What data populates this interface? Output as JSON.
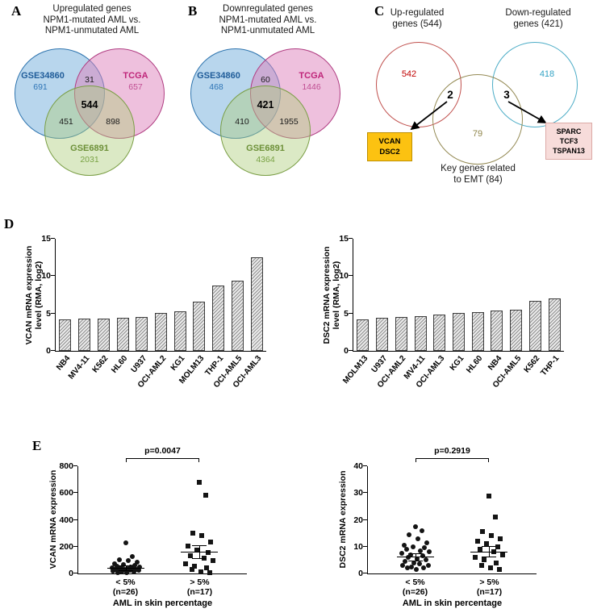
{
  "figure": {
    "panel_labels": {
      "a": "A",
      "b": "B",
      "c": "C",
      "d": "D",
      "e": "E"
    }
  },
  "venn_a": {
    "title_lines": [
      "Upregulated genes",
      "NPM1-mutated AML vs.",
      "NPM1-unmutated AML"
    ],
    "sets": [
      {
        "name": "GSE34860",
        "unique": "691"
      },
      {
        "name": "TCGA",
        "unique": "657"
      },
      {
        "name": "GSE6891",
        "unique": "2031"
      }
    ],
    "overlap_top": "31",
    "overlap_center": "544",
    "overlap_left": "451",
    "overlap_right": "898"
  },
  "venn_b": {
    "title_lines": [
      "Downregulated genes",
      "NPM1-mutated AML vs.",
      "NPM1-unmutated AML"
    ],
    "sets": [
      {
        "name": "GSE34860",
        "unique": "468"
      },
      {
        "name": "TCGA",
        "unique": "1446"
      },
      {
        "name": "GSE6891",
        "unique": "4364"
      }
    ],
    "overlap_top": "60",
    "overlap_center": "421",
    "overlap_left": "410",
    "overlap_right": "1955"
  },
  "venn_c": {
    "up_title_lines": [
      "Up-regulated",
      "genes  (544)"
    ],
    "down_title_lines": [
      "Down-regulated",
      "genes  (421)"
    ],
    "up_unique": "542",
    "down_unique": "418",
    "up_emt_overlap": "2",
    "down_emt_overlap": "3",
    "emt_unique": "79",
    "emt_label_lines": [
      "Key genes related",
      "to EMT (84)"
    ],
    "up_genes_box": [
      "VCAN",
      "DSC2"
    ],
    "down_genes_box": [
      "SPARC",
      "TCF3",
      "TSPAN13"
    ]
  },
  "colors": {
    "gse34860": "#2e75b6",
    "tcga": "#bf2579",
    "gse6891": "#79a244",
    "up_circle": "#c0504d",
    "down_circle": "#4bacc6",
    "emt_circle": "#948a54",
    "vcan_box_bg": "#fcc211",
    "sparc_box_bg": "#f7dcda"
  },
  "chart_data": [
    {
      "id": "vcan_bar",
      "type": "bar",
      "ylabel_lines": [
        "VCAN mRNA expression",
        "level (RMA, log2)"
      ],
      "ylim": [
        0,
        15
      ],
      "yticks": [
        0,
        5,
        10,
        15
      ],
      "grid": false,
      "categories": [
        "NB4",
        "MV4-11",
        "K562",
        "HL60",
        "U937",
        "OCI-AML2",
        "KG1",
        "MOLM13",
        "THP-1",
        "OCI-AML5",
        "OCI-AML3"
      ],
      "values": [
        4.2,
        4.3,
        4.3,
        4.4,
        4.5,
        5.1,
        5.3,
        6.6,
        8.7,
        9.4,
        12.5
      ]
    },
    {
      "id": "dsc2_bar",
      "type": "bar",
      "ylabel_lines": [
        "DSC2 mRNA expression",
        "level (RMA, log2)"
      ],
      "ylim": [
        0,
        15
      ],
      "yticks": [
        0,
        5,
        10,
        15
      ],
      "grid": false,
      "categories": [
        "MOLM13",
        "U937",
        "OCI-AML2",
        "MV4-11",
        "OCI-AML3",
        "KG1",
        "HL60",
        "NB4",
        "OCI-AML5",
        "K562",
        "THP-1"
      ],
      "values": [
        4.2,
        4.4,
        4.5,
        4.6,
        4.9,
        5.1,
        5.2,
        5.4,
        5.5,
        6.7,
        7.0
      ]
    },
    {
      "id": "vcan_scatter",
      "type": "scatter",
      "p_label": "p=0.0047",
      "ylabel": "VCAN mRNA expression",
      "xlabel": "AML in skin percentage",
      "ylim": [
        0,
        800
      ],
      "yticks": [
        0,
        200,
        400,
        600,
        800
      ],
      "groups": [
        {
          "label_lines": [
            "< 5%",
            "(n=26)"
          ],
          "marker": "circle",
          "mean": 42,
          "sem": 16,
          "points": [
            230,
            125,
            105,
            95,
            85,
            75,
            65,
            60,
            55,
            50,
            48,
            45,
            42,
            40,
            38,
            35,
            32,
            30,
            28,
            25,
            22,
            20,
            15,
            12,
            8,
            5
          ]
        },
        {
          "label_lines": [
            "> 5%",
            "(n=17)"
          ],
          "marker": "square",
          "mean": 165,
          "sem": 48,
          "points": [
            680,
            585,
            300,
            285,
            235,
            205,
            175,
            155,
            135,
            115,
            95,
            75,
            55,
            40,
            28,
            15,
            8
          ]
        }
      ]
    },
    {
      "id": "dsc2_scatter",
      "type": "scatter",
      "p_label": "p=0.2919",
      "ylabel": "DSC2 mRNA expression",
      "xlabel": "AML in skin percentage",
      "ylim": [
        0,
        40
      ],
      "yticks": [
        0,
        10,
        20,
        30,
        40
      ],
      "groups": [
        {
          "label_lines": [
            "< 5%",
            "(n=26)"
          ],
          "marker": "circle",
          "mean": 6.2,
          "sem": 1.3,
          "points": [
            17.5,
            16,
            14.5,
            13,
            11.5,
            10.5,
            10,
            9.5,
            9,
            8.5,
            8,
            7.5,
            7,
            6.5,
            6,
            5.5,
            5,
            4.5,
            4,
            3.5,
            3,
            3,
            2.5,
            2,
            2,
            1.5
          ]
        },
        {
          "label_lines": [
            "> 5%",
            "(n=17)"
          ],
          "marker": "square",
          "mean": 8.2,
          "sem": 2.0,
          "points": [
            29,
            21,
            15.5,
            14,
            13,
            12,
            11,
            10,
            9,
            8,
            7,
            6,
            5,
            4,
            3,
            2,
            1.5
          ]
        }
      ]
    }
  ]
}
